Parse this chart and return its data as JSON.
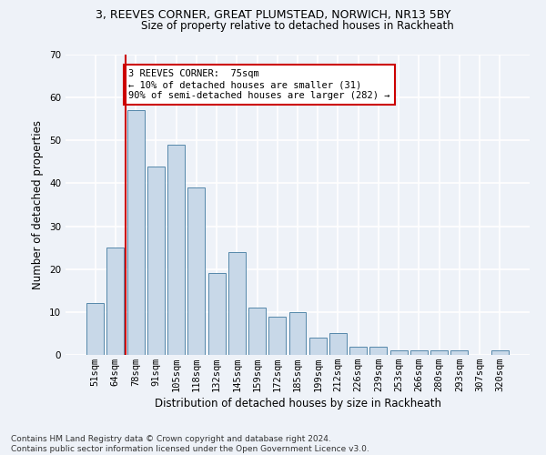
{
  "title1": "3, REEVES CORNER, GREAT PLUMSTEAD, NORWICH, NR13 5BY",
  "title2": "Size of property relative to detached houses in Rackheath",
  "xlabel": "Distribution of detached houses by size in Rackheath",
  "ylabel": "Number of detached properties",
  "categories": [
    "51sqm",
    "64sqm",
    "78sqm",
    "91sqm",
    "105sqm",
    "118sqm",
    "132sqm",
    "145sqm",
    "159sqm",
    "172sqm",
    "185sqm",
    "199sqm",
    "212sqm",
    "226sqm",
    "239sqm",
    "253sqm",
    "266sqm",
    "280sqm",
    "293sqm",
    "307sqm",
    "320sqm"
  ],
  "values": [
    12,
    25,
    57,
    44,
    49,
    39,
    19,
    24,
    11,
    9,
    10,
    4,
    5,
    2,
    2,
    1,
    1,
    1,
    1,
    0,
    1
  ],
  "bar_color": "#c8d8e8",
  "bar_edge_color": "#5588aa",
  "ylim": [
    0,
    70
  ],
  "yticks": [
    0,
    10,
    20,
    30,
    40,
    50,
    60,
    70
  ],
  "annotation_line1": "3 REEVES CORNER:  75sqm",
  "annotation_line2": "← 10% of detached houses are smaller (31)",
  "annotation_line3": "90% of semi-detached houses are larger (282) →",
  "vline_color": "#cc0000",
  "annotation_box_color": "#ffffff",
  "annotation_box_edge": "#cc0000",
  "footer1": "Contains HM Land Registry data © Crown copyright and database right 2024.",
  "footer2": "Contains public sector information licensed under the Open Government Licence v3.0.",
  "background_color": "#eef2f8",
  "grid_color": "#ffffff",
  "title1_fontsize": 9,
  "title2_fontsize": 8.5,
  "xlabel_fontsize": 8.5,
  "ylabel_fontsize": 8.5,
  "tick_fontsize": 7.5,
  "annot_fontsize": 7.5,
  "footer_fontsize": 6.5
}
